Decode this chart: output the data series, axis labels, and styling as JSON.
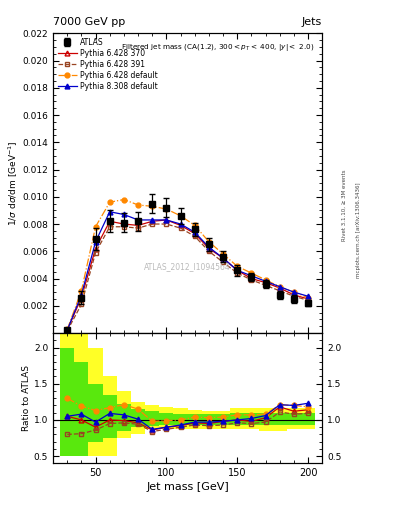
{
  "title_top": "7000 GeV pp",
  "title_right": "Jets",
  "subtitle": "Filtered jet mass (CA(1.2), 300< p$_{T}$ < 400, |y| < 2.0)",
  "watermark": "ATLAS_2012_I1094564",
  "ylabel_main": "1/σ dσ/dm [GeV⁻¹]",
  "ylabel_ratio": "Ratio to ATLAS",
  "xlabel": "Jet mass [GeV]",
  "right_label1": "Rivet 3.1.10, ≥ 3M events",
  "right_label2": "mcplots.cern.ch [arXiv:1306.3436]",
  "jet_mass_x": [
    30,
    40,
    50,
    60,
    70,
    80,
    90,
    100,
    110,
    120,
    130,
    140,
    150,
    160,
    170,
    180,
    190,
    200
  ],
  "atlas_y": [
    0.0002,
    0.0026,
    0.0069,
    0.0082,
    0.0081,
    0.0082,
    0.0095,
    0.0092,
    0.0086,
    0.0076,
    0.0065,
    0.0056,
    0.0046,
    0.0041,
    0.0036,
    0.0028,
    0.0025,
    0.0022
  ],
  "atlas_yerr_lo": [
    0.0001,
    0.0005,
    0.0008,
    0.0008,
    0.0007,
    0.0007,
    0.0007,
    0.0007,
    0.0006,
    0.0005,
    0.0005,
    0.0004,
    0.0004,
    0.0003,
    0.0003,
    0.0003,
    0.0003,
    0.0002
  ],
  "atlas_yerr_hi": [
    0.0001,
    0.0005,
    0.0008,
    0.0008,
    0.0007,
    0.0007,
    0.0007,
    0.0007,
    0.0006,
    0.0005,
    0.0005,
    0.0004,
    0.0004,
    0.0003,
    0.0003,
    0.0003,
    0.0003,
    0.0002
  ],
  "py6_370_y": [
    0.00021,
    0.0026,
    0.0062,
    0.0082,
    0.008,
    0.0079,
    0.0082,
    0.0083,
    0.0079,
    0.0073,
    0.0062,
    0.0055,
    0.0046,
    0.004,
    0.0037,
    0.0033,
    0.0028,
    0.0025
  ],
  "py6_391_y": [
    0.00016,
    0.0021,
    0.0059,
    0.0078,
    0.0078,
    0.0077,
    0.008,
    0.008,
    0.0077,
    0.0071,
    0.006,
    0.0052,
    0.0044,
    0.0039,
    0.0035,
    0.0031,
    0.0027,
    0.0024
  ],
  "py6_def_y": [
    0.00026,
    0.0031,
    0.0078,
    0.0096,
    0.0098,
    0.0094,
    0.0093,
    0.0091,
    0.0086,
    0.0079,
    0.0067,
    0.0058,
    0.0049,
    0.0044,
    0.0039,
    0.0034,
    0.003,
    0.0026
  ],
  "py8_def_y": [
    0.00021,
    0.0028,
    0.0067,
    0.0089,
    0.0087,
    0.0083,
    0.0083,
    0.0083,
    0.008,
    0.0074,
    0.0063,
    0.0055,
    0.0046,
    0.0042,
    0.0038,
    0.0034,
    0.003,
    0.0027
  ],
  "py6_370_ratio": [
    1.05,
    1.0,
    0.9,
    1.0,
    0.99,
    0.96,
    0.86,
    0.9,
    0.92,
    0.96,
    0.95,
    0.98,
    1.0,
    0.98,
    1.03,
    1.18,
    1.12,
    1.14
  ],
  "py6_391_ratio": [
    0.8,
    0.81,
    0.86,
    0.95,
    0.96,
    0.94,
    0.84,
    0.87,
    0.9,
    0.93,
    0.92,
    0.93,
    0.96,
    0.95,
    0.97,
    1.11,
    1.08,
    1.09
  ],
  "py6_def_ratio": [
    1.3,
    1.19,
    1.13,
    1.17,
    1.21,
    1.15,
    0.98,
    0.99,
    1.0,
    1.04,
    1.03,
    1.04,
    1.07,
    1.07,
    1.08,
    1.21,
    1.2,
    1.18
  ],
  "py8_def_ratio": [
    1.05,
    1.08,
    0.97,
    1.09,
    1.07,
    1.01,
    0.87,
    0.9,
    0.93,
    0.97,
    0.97,
    0.98,
    1.0,
    1.02,
    1.06,
    1.21,
    1.2,
    1.23
  ],
  "band_x": [
    25,
    35,
    45,
    55,
    65,
    75,
    85,
    95,
    105,
    115,
    125,
    135,
    145,
    155,
    165,
    175,
    185,
    195
  ],
  "band_yellow_lo": [
    0.5,
    0.5,
    0.5,
    0.5,
    0.75,
    0.8,
    0.87,
    0.87,
    0.87,
    0.87,
    0.87,
    0.87,
    0.87,
    0.87,
    0.85,
    0.85,
    0.87,
    0.87
  ],
  "band_yellow_hi": [
    2.5,
    2.5,
    2.0,
    1.6,
    1.4,
    1.25,
    1.2,
    1.18,
    1.16,
    1.14,
    1.13,
    1.13,
    1.17,
    1.17,
    1.17,
    1.17,
    1.17,
    1.17
  ],
  "band_green_lo": [
    0.5,
    0.5,
    0.7,
    0.75,
    0.85,
    0.9,
    0.92,
    0.93,
    0.93,
    0.93,
    0.93,
    0.93,
    0.93,
    0.93,
    0.93,
    0.93,
    0.93,
    0.93
  ],
  "band_green_hi": [
    2.0,
    1.8,
    1.5,
    1.35,
    1.22,
    1.15,
    1.12,
    1.1,
    1.08,
    1.08,
    1.08,
    1.08,
    1.1,
    1.1,
    1.1,
    1.1,
    1.1,
    1.1
  ],
  "color_py6_370": "#cc0000",
  "color_py6_391": "#994422",
  "color_py6_def": "#ff8800",
  "color_py8_def": "#0000cc",
  "color_atlas": "#000000",
  "xlim": [
    20,
    210
  ],
  "ylim_main": [
    0.0,
    0.022
  ],
  "ylim_ratio": [
    0.4,
    2.2
  ],
  "yticks_main": [
    0.002,
    0.004,
    0.006,
    0.008,
    0.01,
    0.012,
    0.014,
    0.016,
    0.018,
    0.02,
    0.022
  ],
  "yticks_ratio": [
    0.5,
    1.0,
    1.5,
    2.0
  ],
  "xticks": [
    50,
    100,
    150,
    200
  ],
  "bw": 10
}
